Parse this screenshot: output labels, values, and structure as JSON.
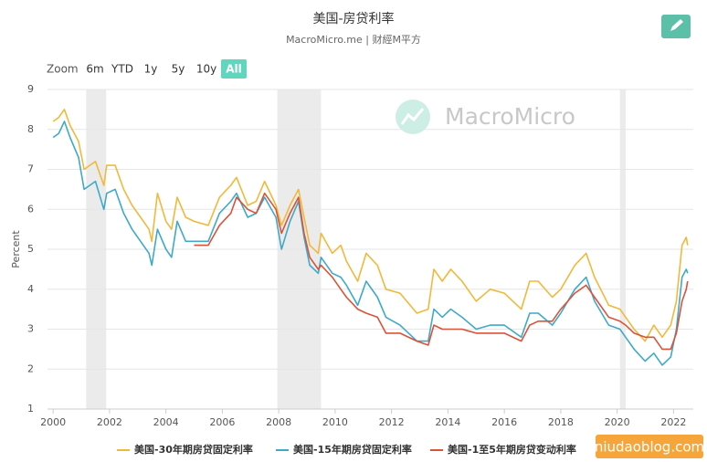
{
  "chart_data": {
    "type": "line",
    "title": "美国-房贷利率",
    "subtitle": "MacroMicro.me | 财經M平方",
    "ylabel": "Percent",
    "watermark": "MacroMicro",
    "site": "niudaoblog.com",
    "zoom": {
      "label": "Zoom",
      "options": [
        "6m",
        "YTD",
        "1y",
        "5y",
        "10y",
        "All"
      ],
      "active": 5
    },
    "x": [
      2000.0,
      2000.2,
      2000.4,
      2000.6,
      2000.9,
      2001.1,
      2001.3,
      2001.5,
      2001.8,
      2001.9,
      2002.2,
      2002.5,
      2002.8,
      2003.0,
      2003.4,
      2003.5,
      2003.7,
      2004.0,
      2004.2,
      2004.4,
      2004.7,
      2005.0,
      2005.5,
      2005.9,
      2006.3,
      2006.5,
      2006.9,
      2007.2,
      2007.5,
      2007.9,
      2008.1,
      2008.4,
      2008.7,
      2008.9,
      2009.1,
      2009.4,
      2009.5,
      2009.9,
      2010.2,
      2010.4,
      2010.8,
      2011.1,
      2011.5,
      2011.8,
      2012.3,
      2012.9,
      2013.3,
      2013.5,
      2013.8,
      2014.1,
      2014.5,
      2015.0,
      2015.5,
      2016.0,
      2016.6,
      2016.9,
      2017.2,
      2017.7,
      2018.0,
      2018.5,
      2018.9,
      2019.2,
      2019.7,
      2020.1,
      2020.3,
      2020.6,
      2020.99,
      2021.3,
      2021.6,
      2021.9,
      2022.1,
      2022.3,
      2022.45,
      2022.5
    ],
    "series": [
      {
        "name": "美国-30年期房贷固定利率",
        "color": "#f0b93a",
        "values": [
          8.2,
          8.3,
          8.5,
          8.1,
          7.7,
          7.0,
          7.1,
          7.2,
          6.6,
          7.1,
          7.1,
          6.5,
          6.1,
          5.9,
          5.5,
          5.2,
          6.4,
          5.7,
          5.5,
          6.3,
          5.8,
          5.7,
          5.6,
          6.3,
          6.6,
          6.8,
          6.1,
          6.2,
          6.7,
          6.1,
          5.6,
          6.1,
          6.5,
          5.8,
          5.1,
          4.9,
          5.4,
          4.9,
          5.1,
          4.7,
          4.2,
          4.9,
          4.6,
          4.0,
          3.9,
          3.4,
          3.5,
          4.5,
          4.2,
          4.5,
          4.2,
          3.7,
          4.0,
          3.9,
          3.5,
          4.2,
          4.2,
          3.8,
          4.0,
          4.6,
          4.9,
          4.3,
          3.6,
          3.5,
          3.3,
          3.0,
          2.7,
          3.1,
          2.8,
          3.1,
          3.7,
          5.1,
          5.3,
          5.1
        ]
      },
      {
        "name": "美国-15年期房贷固定利率",
        "color": "#3fa9c8",
        "values": [
          7.8,
          7.9,
          8.2,
          7.8,
          7.3,
          6.5,
          6.6,
          6.7,
          6.0,
          6.4,
          6.5,
          5.9,
          5.5,
          5.3,
          4.9,
          4.6,
          5.5,
          5.0,
          4.8,
          5.7,
          5.2,
          5.2,
          5.2,
          5.9,
          6.2,
          6.4,
          5.8,
          5.9,
          6.3,
          5.8,
          5.0,
          5.7,
          6.2,
          5.3,
          4.6,
          4.4,
          4.8,
          4.4,
          4.3,
          4.1,
          3.6,
          4.2,
          3.8,
          3.3,
          3.1,
          2.7,
          2.7,
          3.5,
          3.3,
          3.5,
          3.3,
          3.0,
          3.1,
          3.1,
          2.8,
          3.4,
          3.4,
          3.1,
          3.4,
          4.0,
          4.3,
          3.7,
          3.1,
          3.0,
          2.8,
          2.5,
          2.2,
          2.4,
          2.1,
          2.3,
          3.0,
          4.3,
          4.5,
          4.4
        ]
      },
      {
        "name": "美国-1至5年期房贷变动利率",
        "color": "#d9533a",
        "values": [
          null,
          null,
          null,
          null,
          null,
          null,
          null,
          null,
          null,
          null,
          null,
          null,
          null,
          null,
          null,
          null,
          null,
          null,
          null,
          null,
          null,
          5.1,
          5.1,
          5.6,
          5.9,
          6.3,
          6.0,
          5.9,
          6.4,
          6.0,
          5.4,
          5.9,
          6.3,
          5.4,
          4.8,
          4.5,
          4.6,
          4.3,
          4.0,
          3.8,
          3.5,
          3.4,
          3.3,
          2.9,
          2.9,
          2.7,
          2.6,
          3.1,
          3.0,
          3.0,
          3.0,
          2.9,
          2.9,
          2.9,
          2.7,
          3.1,
          3.2,
          3.2,
          3.5,
          3.9,
          4.1,
          3.8,
          3.3,
          3.2,
          3.1,
          2.9,
          2.8,
          2.8,
          2.5,
          2.5,
          2.9,
          3.7,
          4.0,
          4.2
        ]
      }
    ],
    "recessions": [
      [
        2001.17,
        2001.88
      ],
      [
        2007.95,
        2009.5
      ],
      [
        2020.1,
        2020.3
      ]
    ],
    "xlim": [
      1999.8,
      2022.7
    ],
    "xticks": [
      2000,
      2002,
      2004,
      2006,
      2008,
      2010,
      2012,
      2014,
      2016,
      2018,
      2020,
      2022
    ],
    "ylim": [
      1,
      9
    ],
    "yticks": [
      1,
      2,
      3,
      4,
      5,
      6,
      7,
      8,
      9
    ],
    "grid": true
  }
}
